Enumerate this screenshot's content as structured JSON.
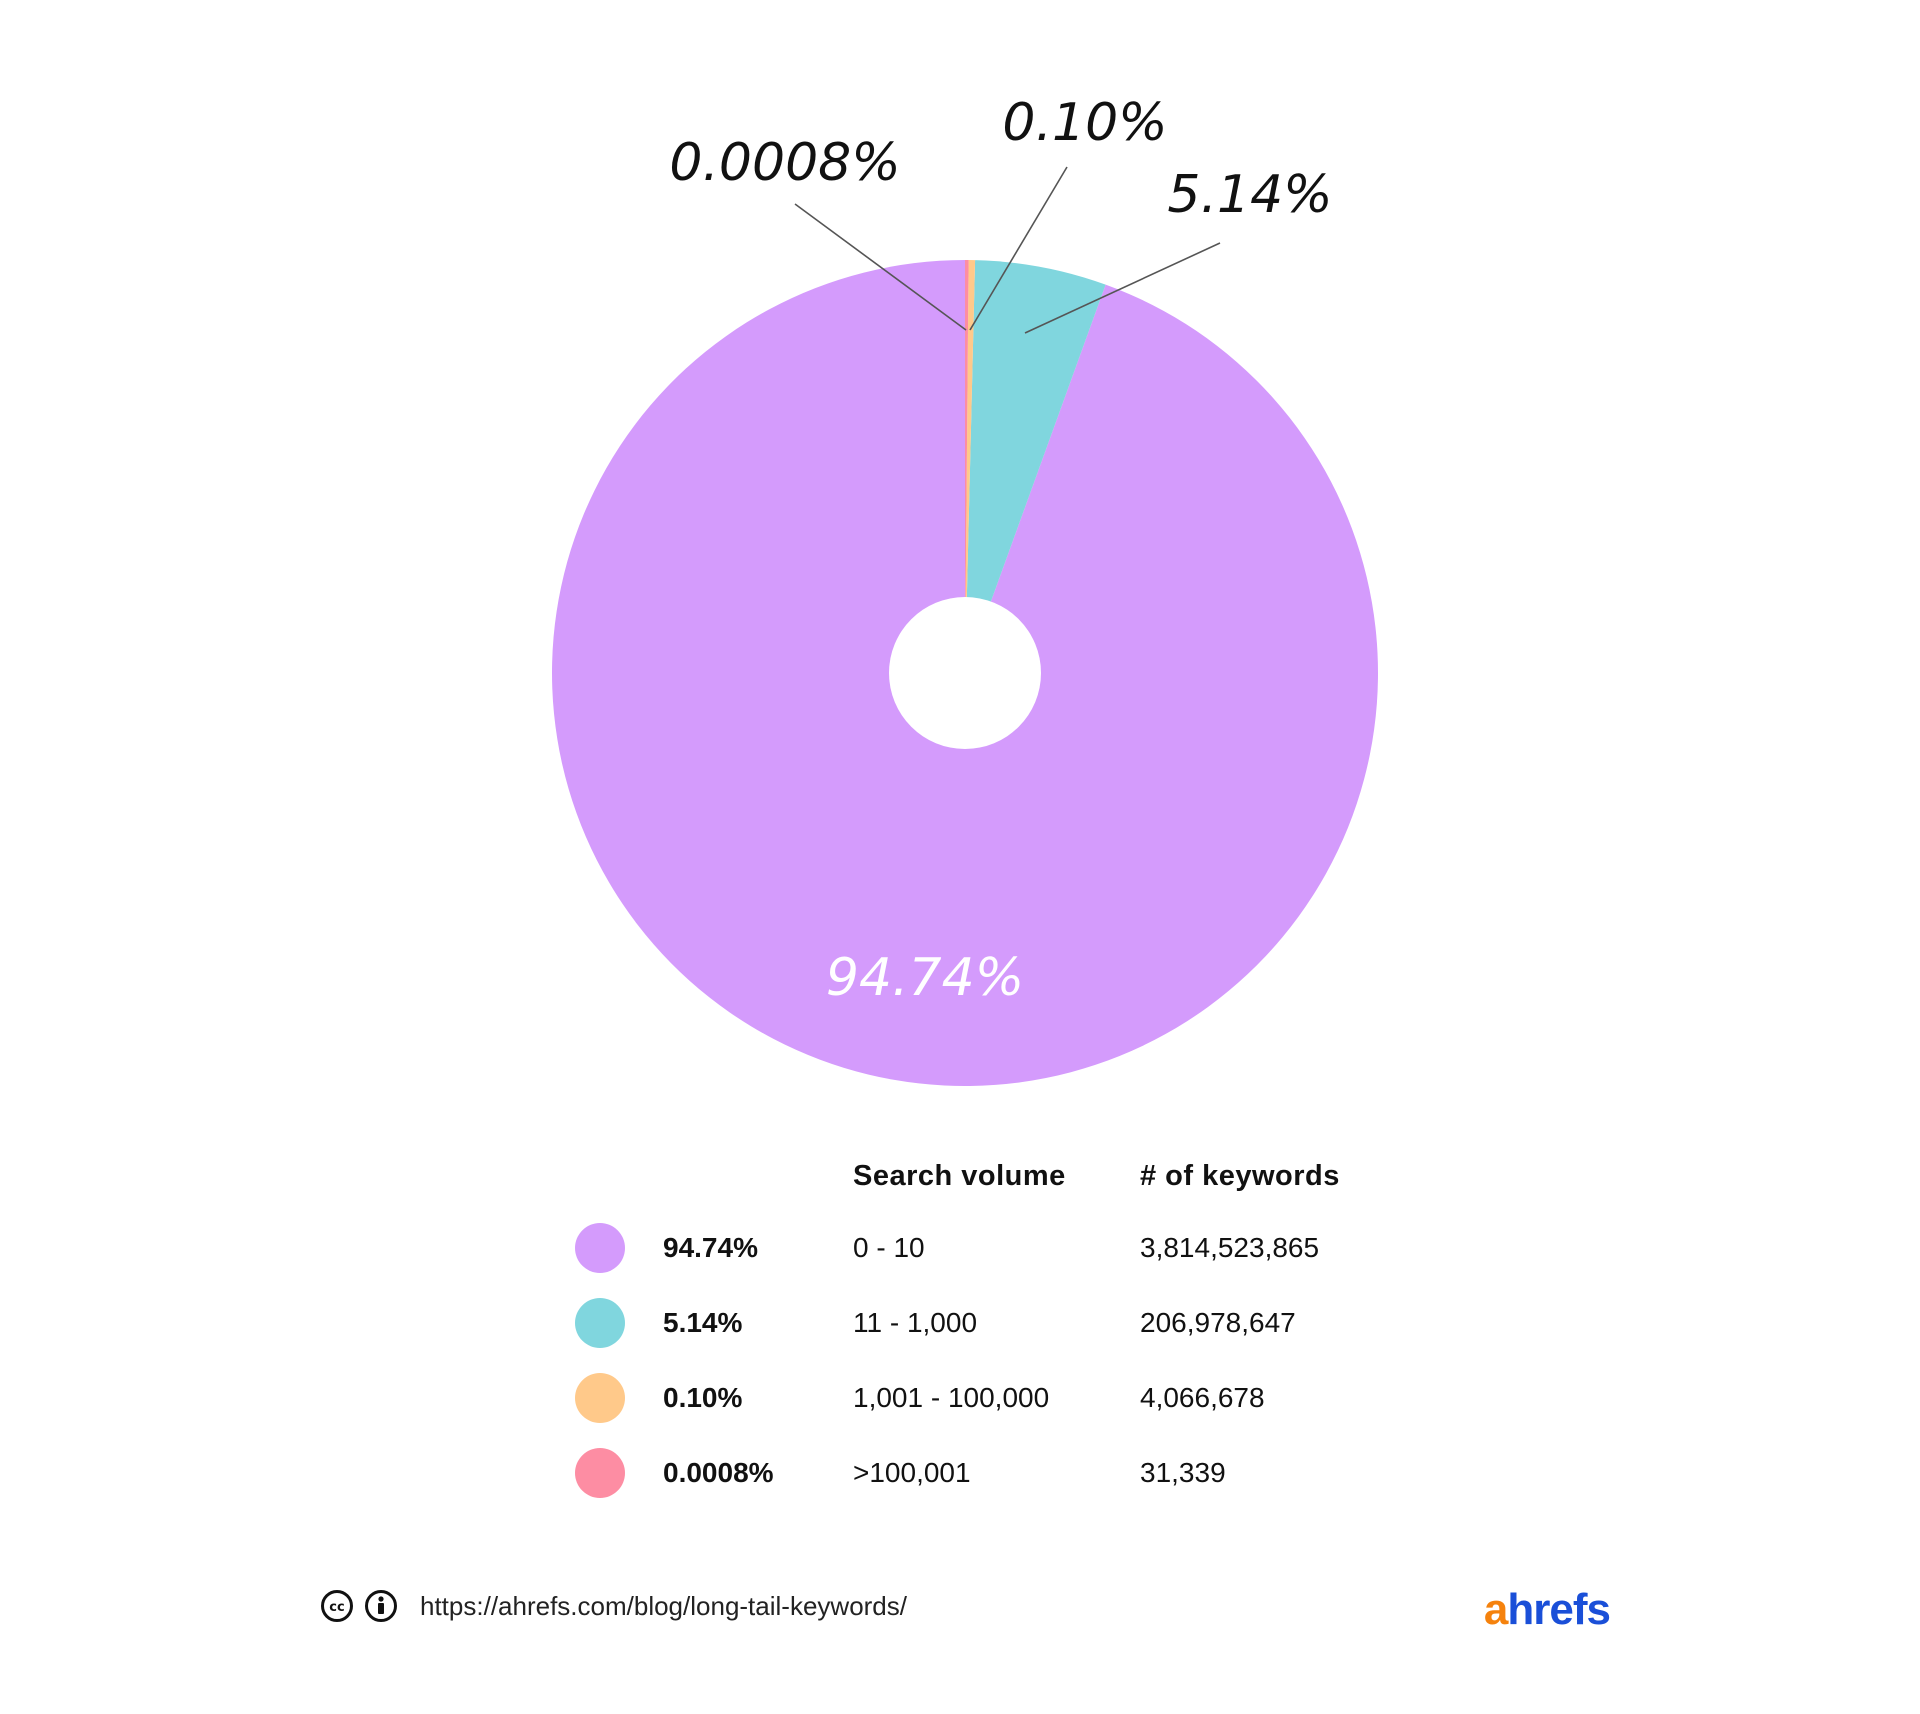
{
  "chart_data": {
    "type": "pie",
    "title": "",
    "series": [
      {
        "name": "94.74%",
        "value": 94.74,
        "color": "#d49bfc",
        "label": "94.74%",
        "volume": "0 - 10",
        "keywords": "3,814,523,865"
      },
      {
        "name": "5.14%",
        "value": 5.14,
        "color": "#80d6de",
        "label": "5.14%",
        "volume": "11 - 1,000",
        "keywords": "206,978,647"
      },
      {
        "name": "0.10%",
        "value": 0.1,
        "color": "#ffc98a",
        "label": "0.10%",
        "volume": "1,001 - 100,000",
        "keywords": "4,066,678"
      },
      {
        "name": "0.0008%",
        "value": 0.0008,
        "color": "#fd8da3",
        "label": "0.0008%",
        "volume": ">100,001",
        "keywords": "31,339"
      }
    ],
    "legend_position": "bottom",
    "donut_hole": true
  },
  "legend": {
    "header_volume": "Search volume",
    "header_keywords": "# of keywords",
    "rows": [
      {
        "pct": "94.74%",
        "volume": "0 - 10",
        "keywords": "3,814,523,865",
        "color": "#d49bfc"
      },
      {
        "pct": "5.14%",
        "volume": "11 - 1,000",
        "keywords": "206,978,647",
        "color": "#80d6de"
      },
      {
        "pct": "0.10%",
        "volume": "1,001 - 100,000",
        "keywords": "4,066,678",
        "color": "#ffc98a"
      },
      {
        "pct": "0.0008%",
        "volume": ">100,001",
        "keywords": "31,339",
        "color": "#fd8da3"
      }
    ]
  },
  "footer": {
    "url": "https://ahrefs.com/blog/long-tail-keywords/",
    "brand_a": "a",
    "brand_rest": "hrefs",
    "license_icons": [
      "creative-commons-icon",
      "attribution-icon"
    ]
  }
}
